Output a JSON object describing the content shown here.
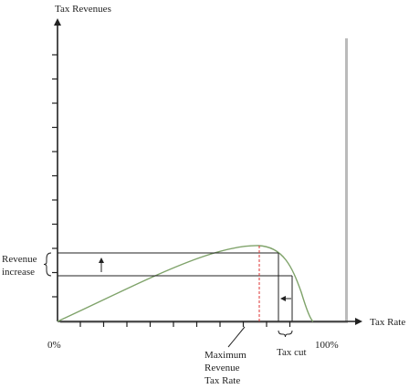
{
  "axes": {
    "y_label": "Tax Revenues",
    "x_label": "Tax Rate",
    "x_start": "0%",
    "x_end": "100%"
  },
  "annotations": {
    "revenue_increase": [
      "Revenue",
      "increase"
    ],
    "max_rate": [
      "Maximum",
      "Revenue",
      "Tax Rate"
    ],
    "tax_cut": "Tax cut"
  }
}
